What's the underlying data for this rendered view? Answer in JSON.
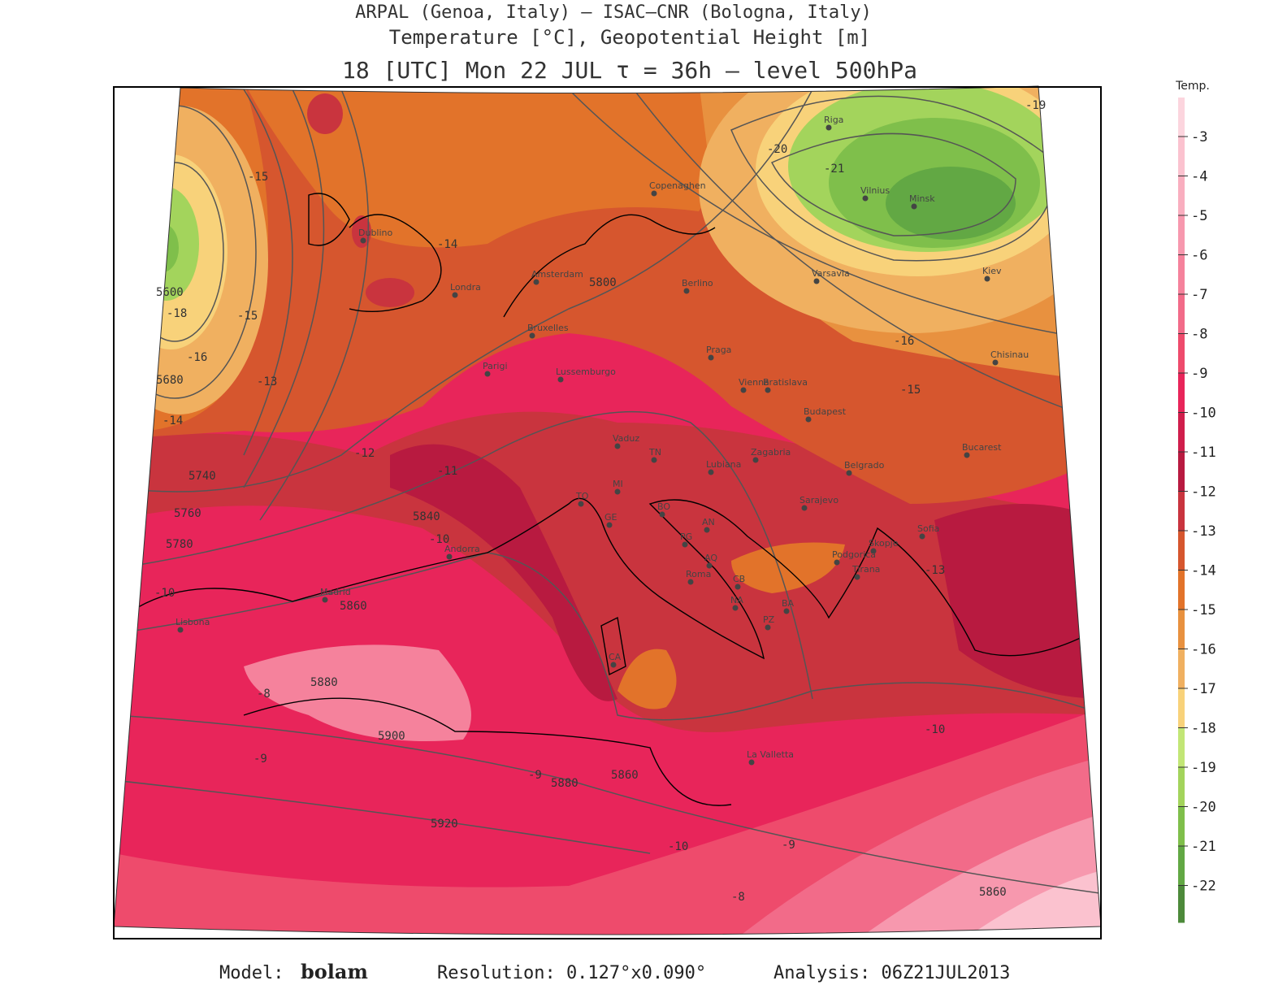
{
  "header": {
    "line1": "ARPAL (Genoa, Italy)  —  ISAC–CNR (Bologna, Italy)",
    "line2": "Temperature [°C], Geopotential Height [m]",
    "line3": "18 [UTC] Mon 22 JUL  τ = 36h  —  level 500hPa"
  },
  "footer": {
    "model_label": "Model:",
    "model": "bolam",
    "resolution": "Resolution: 0.127°x0.090°",
    "analysis": "Analysis: 06Z21JUL2013"
  },
  "colorbar": {
    "title": "Temp.",
    "ticks": [
      -3,
      -4,
      -5,
      -6,
      -7,
      -8,
      -9,
      -10,
      -11,
      -12,
      -13,
      -14,
      -15,
      -16,
      -17,
      -18,
      -19,
      -20,
      -21,
      -22
    ],
    "colors": [
      "#fcd5de",
      "#fbc2cf",
      "#f9aebf",
      "#f798ae",
      "#f5829c",
      "#f26b89",
      "#ee4b6c",
      "#e8255a",
      "#d01e4c",
      "#b81a40",
      "#c9343e",
      "#d6562e",
      "#e2732a",
      "#e8913f",
      "#f0b060",
      "#f8d27a",
      "#c2e676",
      "#a3d45c",
      "#7fbf4b",
      "#62a844",
      "#4d8a3a"
    ]
  },
  "cities": [
    "Dublino",
    "Londra",
    "Amsterdam",
    "Bruxelles",
    "Parigi",
    "Lussemburgo",
    "Copenaghen",
    "Berlino",
    "Praga",
    "Vienna",
    "Bratislava",
    "Budapest",
    "Varsavia",
    "Vilnius",
    "Minsk",
    "Riga",
    "Kiev",
    "Chisinau",
    "Bucarest",
    "Belgrado",
    "Sarajevo",
    "Zagabria",
    "Lubiana",
    "Sofia",
    "Skopje",
    "Podgorica",
    "Tirana",
    "Madrid",
    "Lisbona",
    "Andorra",
    "Roma",
    "La Valletta",
    "Vaduz",
    "GE",
    "MI",
    "TN",
    "BO",
    "AN",
    "PG",
    "AQ",
    "CB",
    "NA",
    "BA",
    "PZ",
    "CA",
    "TO"
  ],
  "contour_labels": [
    "5600",
    "5680",
    "5740",
    "5760",
    "5780",
    "5800",
    "5840",
    "5860",
    "5880",
    "5900",
    "5920",
    "5860",
    "5880",
    "5860",
    "-15",
    "-14",
    "-13",
    "-16",
    "-18",
    "-15",
    "-16",
    "-14",
    "-15",
    "-10",
    "-9",
    "-8",
    "-11",
    "-12",
    "-19",
    "-20",
    "-21",
    "-10",
    "-10",
    "-9",
    "-8",
    "-9",
    "-13",
    "-10"
  ]
}
